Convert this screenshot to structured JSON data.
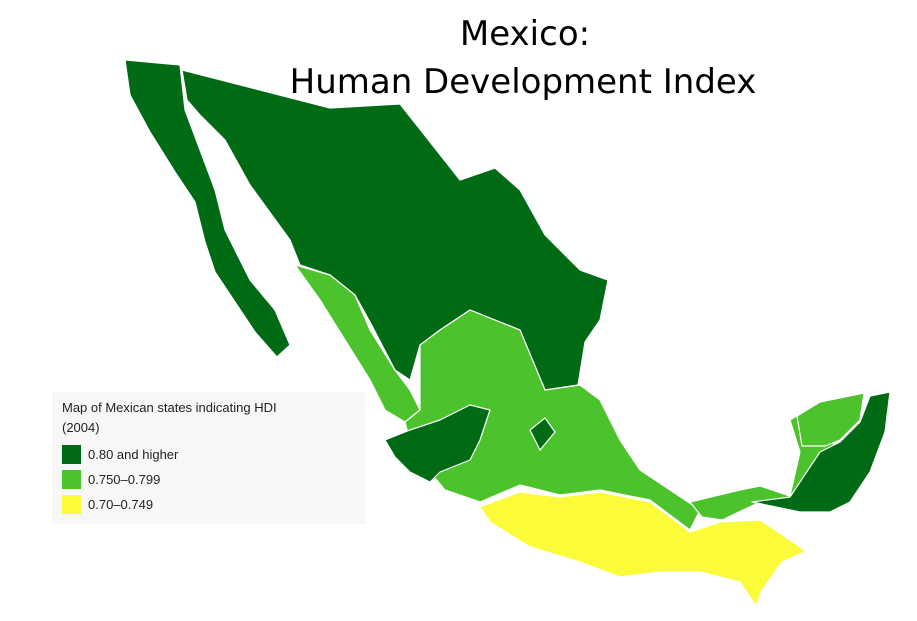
{
  "title": [
    "Mexico:",
    "Human Development Index"
  ],
  "legend": {
    "title": [
      "Map of Mexican states indicating HDI",
      "(2004)"
    ],
    "items": [
      {
        "label": "0.80 and higher",
        "color": "#006b14"
      },
      {
        "label": "0.750–0.799",
        "color": "#4cc22c"
      },
      {
        "label": "0.70–0.749",
        "color": "#fbfb3a"
      }
    ]
  }
}
